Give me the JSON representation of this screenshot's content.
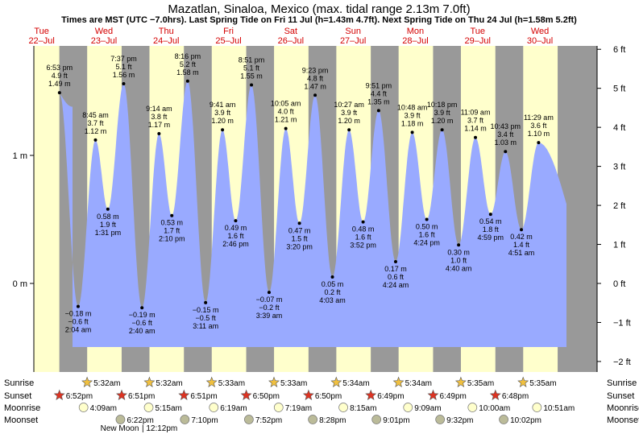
{
  "chart_data": {
    "type": "area",
    "title": "Mazatlan, Sinaloa, Mexico (max. tidal range 2.13m 7.0ft)",
    "subtitle": "Times are MST (UTC −7.0hrs). Last Spring Tide on Fri 11 Jul (h=1.43m 4.7ft). Next Spring Tide on Thu 24 Jul (h=1.58m 5.2ft)",
    "days": [
      {
        "name": "Tue",
        "date": "22–Jul"
      },
      {
        "name": "Wed",
        "date": "23–Jul"
      },
      {
        "name": "Thu",
        "date": "24–Jul"
      },
      {
        "name": "Fri",
        "date": "25–Jul"
      },
      {
        "name": "Sat",
        "date": "26–Jul"
      },
      {
        "name": "Sun",
        "date": "27–Jul"
      },
      {
        "name": "Mon",
        "date": "28–Jul"
      },
      {
        "name": "Tue",
        "date": "29–Jul"
      },
      {
        "name": "Wed",
        "date": "30–Jul"
      }
    ],
    "y_axis_left": {
      "unit": "m",
      "ticks": [
        {
          "v": 0,
          "label": "0 m"
        },
        {
          "v": 1,
          "label": "1 m"
        }
      ]
    },
    "y_axis_right": {
      "unit": "ft",
      "ticks": [
        {
          "v": -2,
          "label": "−2 ft"
        },
        {
          "v": -1,
          "label": "−1 ft"
        },
        {
          "v": 0,
          "label": "0 ft"
        },
        {
          "v": 1,
          "label": "1 ft"
        },
        {
          "v": 2,
          "label": "2 ft"
        },
        {
          "v": 3,
          "label": "3 ft"
        },
        {
          "v": 4,
          "label": "4 ft"
        },
        {
          "v": 5,
          "label": "5 ft"
        },
        {
          "v": 6,
          "label": "6 ft"
        }
      ]
    },
    "ylim_m": [
      -0.5,
      1.8
    ],
    "tides": [
      {
        "day": 0,
        "hour": 18.883,
        "m": 1.49,
        "time": "6:53 pm",
        "m_label": "1.49 m",
        "ft_label": "4.9 ft"
      },
      {
        "day": 1,
        "hour": 2.067,
        "m": -0.18,
        "time": "2:04 am",
        "m_label": "−0.18 m",
        "ft_label": "−0.6 ft"
      },
      {
        "day": 1,
        "hour": 8.75,
        "m": 1.12,
        "time": "8:45 am",
        "m_label": "1.12 m",
        "ft_label": "3.7 ft"
      },
      {
        "day": 1,
        "hour": 13.517,
        "m": 0.58,
        "time": "1:31 pm",
        "m_label": "0.58 m",
        "ft_label": "1.9 ft"
      },
      {
        "day": 1,
        "hour": 19.617,
        "m": 1.56,
        "time": "7:37 pm",
        "m_label": "1.56 m",
        "ft_label": "5.1 ft"
      },
      {
        "day": 2,
        "hour": 2.667,
        "m": -0.19,
        "time": "2:40 am",
        "m_label": "−0.19 m",
        "ft_label": "−0.6 ft"
      },
      {
        "day": 2,
        "hour": 9.233,
        "m": 1.17,
        "time": "9:14 am",
        "m_label": "1.17 m",
        "ft_label": "3.8 ft"
      },
      {
        "day": 2,
        "hour": 14.167,
        "m": 0.53,
        "time": "2:10 pm",
        "m_label": "0.53 m",
        "ft_label": "1.7 ft"
      },
      {
        "day": 2,
        "hour": 20.267,
        "m": 1.58,
        "time": "8:16 pm",
        "m_label": "1.58 m",
        "ft_label": "5.2 ft"
      },
      {
        "day": 3,
        "hour": 3.183,
        "m": -0.15,
        "time": "3:11 am",
        "m_label": "−0.15 m",
        "ft_label": "−0.5 ft"
      },
      {
        "day": 3,
        "hour": 9.683,
        "m": 1.2,
        "time": "9:41 am",
        "m_label": "1.20 m",
        "ft_label": "3.9 ft"
      },
      {
        "day": 3,
        "hour": 14.767,
        "m": 0.49,
        "time": "2:46 pm",
        "m_label": "0.49 m",
        "ft_label": "1.6 ft"
      },
      {
        "day": 3,
        "hour": 20.85,
        "m": 1.55,
        "time": "8:51 pm",
        "m_label": "1.55 m",
        "ft_label": "5.1 ft"
      },
      {
        "day": 4,
        "hour": 3.65,
        "m": -0.07,
        "time": "3:39 am",
        "m_label": "−0.07 m",
        "ft_label": "−0.2 ft"
      },
      {
        "day": 4,
        "hour": 10.083,
        "m": 1.21,
        "time": "10:05 am",
        "m_label": "1.21 m",
        "ft_label": "4.0 ft"
      },
      {
        "day": 4,
        "hour": 15.333,
        "m": 0.47,
        "time": "3:20 pm",
        "m_label": "0.47 m",
        "ft_label": "1.5 ft"
      },
      {
        "day": 4,
        "hour": 21.383,
        "m": 1.47,
        "time": "9:23 pm",
        "m_label": "1.47 m",
        "ft_label": "4.8 ft"
      },
      {
        "day": 5,
        "hour": 4.05,
        "m": 0.05,
        "time": "4:03 am",
        "m_label": "0.05 m",
        "ft_label": "0.2 ft"
      },
      {
        "day": 5,
        "hour": 10.45,
        "m": 1.2,
        "time": "10:27 am",
        "m_label": "1.20 m",
        "ft_label": "3.9 ft"
      },
      {
        "day": 5,
        "hour": 15.867,
        "m": 0.48,
        "time": "3:52 pm",
        "m_label": "0.48 m",
        "ft_label": "1.6 ft"
      },
      {
        "day": 5,
        "hour": 21.85,
        "m": 1.35,
        "time": "9:51 pm",
        "m_label": "1.35 m",
        "ft_label": "4.4 ft"
      },
      {
        "day": 6,
        "hour": 4.4,
        "m": 0.17,
        "time": "4:24 am",
        "m_label": "0.17 m",
        "ft_label": "0.6 ft"
      },
      {
        "day": 6,
        "hour": 10.8,
        "m": 1.18,
        "time": "10:48 am",
        "m_label": "1.18 m",
        "ft_label": "3.9 ft"
      },
      {
        "day": 6,
        "hour": 16.4,
        "m": 0.5,
        "time": "4:24 pm",
        "m_label": "0.50 m",
        "ft_label": "1.6 ft"
      },
      {
        "day": 6,
        "hour": 22.3,
        "m": 1.2,
        "time": "10:18 pm",
        "m_label": "1.20 m",
        "ft_label": "3.9 ft"
      },
      {
        "day": 7,
        "hour": 4.667,
        "m": 0.3,
        "time": "4:40 am",
        "m_label": "0.30 m",
        "ft_label": "1.0 ft"
      },
      {
        "day": 7,
        "hour": 11.15,
        "m": 1.14,
        "time": "11:09 am",
        "m_label": "1.14 m",
        "ft_label": "3.7 ft"
      },
      {
        "day": 7,
        "hour": 16.983,
        "m": 0.54,
        "time": "4:59 pm",
        "m_label": "0.54 m",
        "ft_label": "1.8 ft"
      },
      {
        "day": 7,
        "hour": 22.717,
        "m": 1.03,
        "time": "10:43 pm",
        "m_label": "1.03 m",
        "ft_label": "3.4 ft"
      },
      {
        "day": 8,
        "hour": 4.85,
        "m": 0.42,
        "time": "4:51 am",
        "m_label": "0.42 m",
        "ft_label": "1.4 ft"
      },
      {
        "day": 8,
        "hour": 11.483,
        "m": 1.1,
        "time": "11:29 am",
        "m_label": "1.10 m",
        "ft_label": "3.6 ft"
      }
    ],
    "sun_moon": {
      "rows": [
        "Sunrise",
        "Sunset",
        "Moonrise",
        "Moonset"
      ],
      "sunrise": [
        {
          "day": 1,
          "time": "5:32am"
        },
        {
          "day": 2,
          "time": "5:32am"
        },
        {
          "day": 3,
          "time": "5:33am"
        },
        {
          "day": 4,
          "time": "5:33am"
        },
        {
          "day": 5,
          "time": "5:34am"
        },
        {
          "day": 6,
          "time": "5:34am"
        },
        {
          "day": 7,
          "time": "5:35am"
        },
        {
          "day": 8,
          "time": "5:35am"
        }
      ],
      "sunset": [
        {
          "day": 0,
          "time": "6:52pm"
        },
        {
          "day": 1,
          "time": "6:51pm"
        },
        {
          "day": 2,
          "time": "6:51pm"
        },
        {
          "day": 3,
          "time": "6:50pm"
        },
        {
          "day": 4,
          "time": "6:50pm"
        },
        {
          "day": 5,
          "time": "6:49pm"
        },
        {
          "day": 6,
          "time": "6:49pm"
        },
        {
          "day": 7,
          "time": "6:48pm"
        }
      ],
      "moonrise": [
        {
          "day": 1,
          "time": "4:09am"
        },
        {
          "day": 2,
          "time": "5:15am"
        },
        {
          "day": 3,
          "time": "6:19am"
        },
        {
          "day": 4,
          "time": "7:19am"
        },
        {
          "day": 5,
          "time": "8:15am"
        },
        {
          "day": 6,
          "time": "9:09am"
        },
        {
          "day": 7,
          "time": "10:00am"
        },
        {
          "day": 8,
          "time": "10:51am"
        }
      ],
      "moonset": [
        {
          "day": 1,
          "time": "6:22pm"
        },
        {
          "day": 2,
          "time": "7:10pm"
        },
        {
          "day": 3,
          "time": "7:52pm"
        },
        {
          "day": 4,
          "time": "8:28pm"
        },
        {
          "day": 5,
          "time": "9:01pm"
        },
        {
          "day": 6,
          "time": "9:32pm"
        },
        {
          "day": 7,
          "time": "10:02pm"
        }
      ],
      "new_moon": "New Moon",
      "new_moon_time": "12:12pm"
    },
    "colors": {
      "day": "#ffffcc",
      "night": "#999999",
      "water": "#99aaff",
      "text_red": "#d40000",
      "sun_rise": "#f0c040",
      "sun_set": "#dd3322",
      "moon_rise": "#ffffcc",
      "moon_set": "#bbbb99"
    }
  }
}
